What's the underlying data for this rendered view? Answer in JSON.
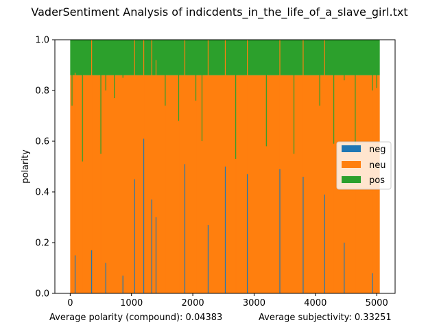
{
  "chart_data": {
    "type": "bar",
    "title": "VaderSentiment Analysis of indicdents_in_the_life_of_a_slave_girl.txt",
    "xlabel": "",
    "ylabel": "polarity",
    "xlim": [
      -250,
      5300
    ],
    "ylim": [
      0.0,
      1.0
    ],
    "x_ticks": [
      0,
      1000,
      2000,
      3000,
      4000,
      5000
    ],
    "y_ticks": [
      0.0,
      0.2,
      0.4,
      0.6,
      0.8,
      1.0
    ],
    "x_tick_labels": [
      "0",
      "1000",
      "2000",
      "3000",
      "4000",
      "5000"
    ],
    "y_tick_labels": [
      "0.0",
      "0.2",
      "0.4",
      "0.6",
      "0.8",
      "1.0"
    ],
    "stacked": true,
    "grid": false,
    "legend_position": "center-right",
    "n_sentences": 5050,
    "series": [
      {
        "name": "neg",
        "color": "#1f77b4"
      },
      {
        "name": "neu",
        "color": "#ff7f0e"
      },
      {
        "name": "pos",
        "color": "#2ca02c"
      }
    ],
    "sample_bars": [
      {
        "x": 30,
        "neg": 0.0,
        "neu": 0.74,
        "pos": 0.26
      },
      {
        "x": 80,
        "neg": 0.15,
        "neu": 0.72,
        "pos": 0.13
      },
      {
        "x": 200,
        "neg": 0.0,
        "neu": 0.52,
        "pos": 0.48
      },
      {
        "x": 350,
        "neg": 0.17,
        "neu": 0.83,
        "pos": 0.0
      },
      {
        "x": 500,
        "neg": 0.0,
        "neu": 0.55,
        "pos": 0.45
      },
      {
        "x": 580,
        "neg": 0.12,
        "neu": 0.68,
        "pos": 0.2
      },
      {
        "x": 720,
        "neg": 0.0,
        "neu": 0.77,
        "pos": 0.23
      },
      {
        "x": 860,
        "neg": 0.07,
        "neu": 0.78,
        "pos": 0.15
      },
      {
        "x": 1050,
        "neg": 0.45,
        "neu": 0.55,
        "pos": 0.0
      },
      {
        "x": 1200,
        "neg": 0.61,
        "neu": 0.39,
        "pos": 0.0
      },
      {
        "x": 1330,
        "neg": 0.37,
        "neu": 0.63,
        "pos": 0.0
      },
      {
        "x": 1400,
        "neg": 0.3,
        "neu": 0.62,
        "pos": 0.08
      },
      {
        "x": 1550,
        "neg": 0.0,
        "neu": 0.74,
        "pos": 0.26
      },
      {
        "x": 1770,
        "neg": 0.0,
        "neu": 0.68,
        "pos": 0.32
      },
      {
        "x": 1870,
        "neg": 0.51,
        "neu": 0.49,
        "pos": 0.0
      },
      {
        "x": 2050,
        "neg": 0.0,
        "neu": 0.76,
        "pos": 0.24
      },
      {
        "x": 2150,
        "neg": 0.0,
        "neu": 0.6,
        "pos": 0.4
      },
      {
        "x": 2250,
        "neg": 0.27,
        "neu": 0.73,
        "pos": 0.0
      },
      {
        "x": 2530,
        "neg": 0.5,
        "neu": 0.5,
        "pos": 0.0
      },
      {
        "x": 2700,
        "neg": 0.0,
        "neu": 0.53,
        "pos": 0.47
      },
      {
        "x": 2890,
        "neg": 0.47,
        "neu": 0.53,
        "pos": 0.0
      },
      {
        "x": 3200,
        "neg": 0.0,
        "neu": 0.58,
        "pos": 0.42
      },
      {
        "x": 3420,
        "neg": 0.49,
        "neu": 0.51,
        "pos": 0.0
      },
      {
        "x": 3650,
        "neg": 0.0,
        "neu": 0.55,
        "pos": 0.45
      },
      {
        "x": 3800,
        "neg": 0.46,
        "neu": 0.54,
        "pos": 0.0
      },
      {
        "x": 4070,
        "neg": 0.0,
        "neu": 0.74,
        "pos": 0.26
      },
      {
        "x": 4150,
        "neg": 0.39,
        "neu": 0.61,
        "pos": 0.0
      },
      {
        "x": 4300,
        "neg": 0.0,
        "neu": 0.59,
        "pos": 0.41
      },
      {
        "x": 4470,
        "neg": 0.2,
        "neu": 0.64,
        "pos": 0.16
      },
      {
        "x": 4650,
        "neg": 0.0,
        "neu": 0.57,
        "pos": 0.43
      },
      {
        "x": 4930,
        "neg": 0.08,
        "neu": 0.72,
        "pos": 0.2
      },
      {
        "x": 5000,
        "neg": 0.0,
        "neu": 0.81,
        "pos": 0.19
      }
    ]
  },
  "footer": {
    "polarity_text": "Average polarity (compound): 0.04383",
    "subjectivity_text": "Average subjectivity: 0.33251"
  }
}
